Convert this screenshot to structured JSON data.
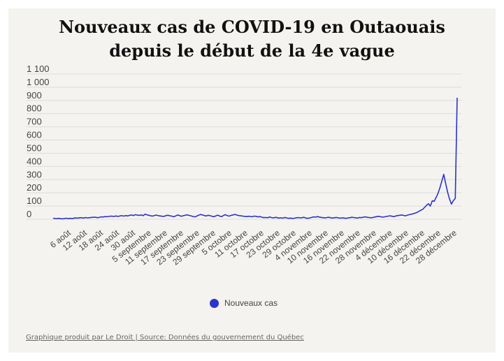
{
  "title_line1": "Nouveaux cas de COVID-19 en Outaouais",
  "title_line2": "depuis le début de la 4e vague",
  "source": "Graphique produit par Le Droit | Source: Données du gouvernement du Québec",
  "colors": {
    "line": "#2c33cc",
    "background": "#f4f3ef",
    "grid": "#dcdcdc"
  },
  "chart_data": {
    "type": "line",
    "title": "Nouveaux cas de COVID-19 en Outaouais depuis le début de la 4e vague",
    "xlabel": "",
    "ylabel": "",
    "ylim": [
      0,
      1100
    ],
    "yticks": [
      0,
      100,
      200,
      300,
      400,
      500,
      600,
      700,
      800,
      900,
      1000,
      1100
    ],
    "ytick_labels": [
      "0",
      "100",
      "200",
      "300",
      "400",
      "500",
      "600",
      "700",
      "800",
      "900",
      "1 000",
      "1 100"
    ],
    "xtick_labels": [
      "6 août",
      "12 août",
      "18 août",
      "24 août",
      "30 août",
      "5 septembre",
      "11 septembre",
      "17 septembre",
      "23 septembre",
      "29 septembre",
      "5 octobre",
      "11 octobre",
      "17 octobre",
      "23 octobre",
      "29 octobre",
      "4 novembre",
      "10 novembre",
      "16 novembre",
      "22 novembre",
      "28 novembre",
      "4 décembre",
      "10 décembre",
      "16 décembre",
      "22 décembre",
      "28 décembre"
    ],
    "grid": true,
    "legend": "bottom",
    "series": [
      {
        "name": "Nouveaux cas",
        "values": [
          8,
          6,
          5,
          7,
          4,
          3,
          6,
          8,
          5,
          7,
          5,
          9,
          10,
          8,
          12,
          11,
          9,
          13,
          10,
          12,
          14,
          15,
          16,
          12,
          14,
          18,
          17,
          20,
          19,
          21,
          24,
          23,
          22,
          25,
          21,
          26,
          27,
          24,
          28,
          25,
          30,
          32,
          28,
          35,
          31,
          29,
          33,
          27,
          38,
          34,
          30,
          26,
          24,
          29,
          31,
          27,
          25,
          23,
          22,
          28,
          30,
          26,
          24,
          19,
          25,
          32,
          28,
          22,
          27,
          30,
          34,
          29,
          26,
          21,
          18,
          24,
          31,
          36,
          33,
          28,
          25,
          30,
          27,
          22,
          19,
          26,
          31,
          24,
          20,
          29,
          35,
          27,
          24,
          30,
          33,
          37,
          31,
          28,
          26,
          24,
          22,
          20,
          23,
          21,
          19,
          24,
          22,
          18,
          20,
          16,
          12,
          14,
          11,
          17,
          13,
          10,
          15,
          12,
          9,
          11,
          8,
          14,
          10,
          7,
          9,
          6,
          8,
          11,
          13,
          10,
          12,
          15,
          9,
          7,
          10,
          14,
          18,
          16,
          20,
          17,
          14,
          12,
          10,
          13,
          15,
          11,
          9,
          12,
          14,
          10,
          8,
          11,
          9,
          7,
          10,
          12,
          15,
          13,
          11,
          9,
          14,
          12,
          16,
          18,
          15,
          13,
          11,
          14,
          17,
          20,
          22,
          19,
          16,
          18,
          21,
          24,
          26,
          23,
          20,
          25,
          28,
          30,
          33,
          29,
          26,
          31,
          35,
          38,
          42,
          46,
          52,
          60,
          68,
          75,
          90,
          105,
          118,
          100,
          140,
          136,
          165,
          196,
          238,
          290,
          340,
          270,
          205,
          155,
          115,
          140,
          158,
          920
        ]
      }
    ]
  }
}
